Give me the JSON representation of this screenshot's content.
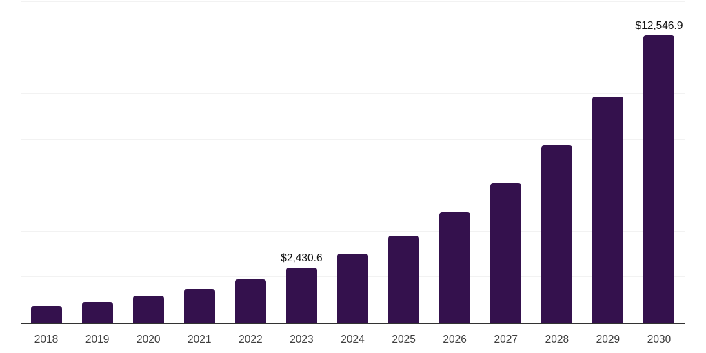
{
  "chart": {
    "background_color": "#ffffff",
    "bar_color": "#34114d",
    "gridline_color": "#f2f2f2",
    "axis_line_color": "#333333",
    "tick_label_color": "#3d3d3d",
    "data_label_color": "#111111"
  },
  "chart_data": {
    "type": "bar",
    "title": "",
    "xlabel": "",
    "ylabel": "",
    "categories": [
      "2018",
      "2019",
      "2020",
      "2021",
      "2022",
      "2023",
      "2024",
      "2025",
      "2026",
      "2027",
      "2028",
      "2029",
      "2030"
    ],
    "values": [
      755,
      945,
      1195,
      1510,
      1925,
      2430.6,
      3045,
      3825,
      4850,
      6100,
      7755,
      9880,
      12546.9
    ],
    "data_labels": [
      {
        "category": "2023",
        "text": "$2,430.6"
      },
      {
        "category": "2030",
        "text": "$12,546.9"
      }
    ],
    "ylim": [
      0,
      14000
    ],
    "gridline_interval": 2000,
    "y_axis_tick_labels_visible": false,
    "grid": "horizontal",
    "legend_position": "none"
  }
}
